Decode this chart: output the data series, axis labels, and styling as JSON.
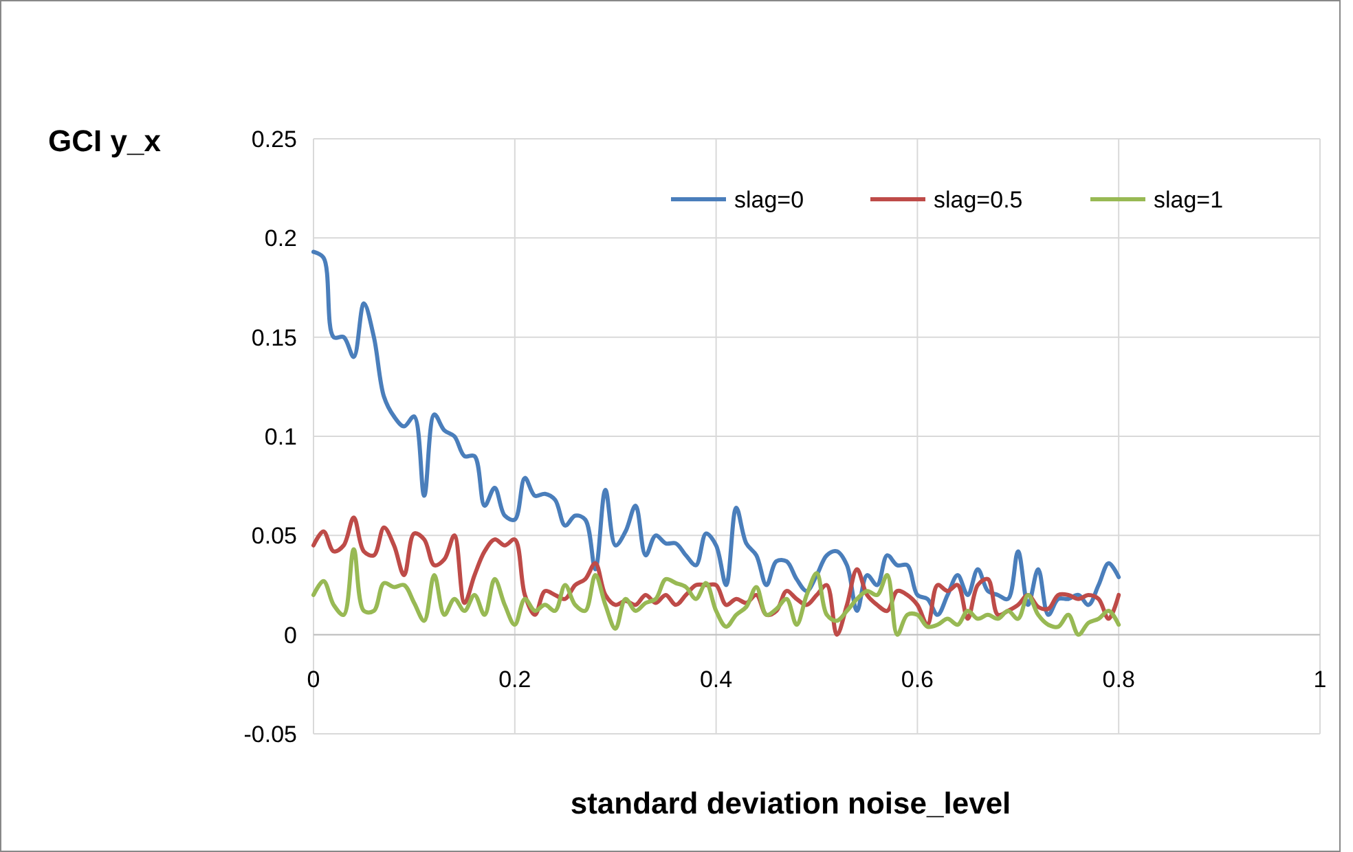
{
  "chart_data": {
    "type": "line",
    "xlabel": "standard deviation noise_level",
    "ylabel": "GCI y_x",
    "x": [
      0,
      0.01,
      0.02,
      0.03,
      0.04,
      0.05,
      0.06,
      0.07,
      0.08,
      0.09,
      0.1,
      0.11,
      0.12,
      0.13,
      0.14,
      0.15,
      0.16,
      0.17,
      0.18,
      0.19,
      0.2,
      0.21,
      0.22,
      0.23,
      0.24,
      0.25,
      0.26,
      0.27,
      0.28,
      0.29,
      0.3,
      0.31,
      0.32,
      0.33,
      0.34,
      0.35,
      0.36,
      0.37,
      0.38,
      0.39,
      0.4,
      0.41,
      0.42,
      0.43,
      0.44,
      0.45,
      0.46,
      0.47,
      0.48,
      0.49,
      0.5,
      0.51,
      0.52,
      0.53,
      0.54,
      0.55,
      0.56,
      0.57,
      0.58,
      0.59,
      0.6,
      0.61,
      0.62,
      0.63,
      0.64,
      0.65,
      0.66,
      0.67,
      0.68,
      0.69,
      0.7,
      0.71,
      0.72,
      0.73,
      0.74,
      0.75,
      0.76,
      0.77,
      0.78,
      0.79,
      0.8
    ],
    "series": [
      {
        "name": "slag=0",
        "color": "#4a7ebb",
        "values": [
          0.193,
          0.19,
          0.15,
          0.15,
          0.14,
          0.167,
          0.15,
          0.12,
          0.11,
          0.105,
          0.11,
          0.07,
          0.111,
          0.103,
          0.1,
          0.09,
          0.09,
          0.065,
          0.074,
          0.06,
          0.058,
          0.079,
          0.07,
          0.071,
          0.068,
          0.055,
          0.06,
          0.058,
          0.033,
          0.073,
          0.045,
          0.052,
          0.065,
          0.04,
          0.05,
          0.046,
          0.046,
          0.04,
          0.035,
          0.051,
          0.045,
          0.025,
          0.064,
          0.046,
          0.04,
          0.025,
          0.037,
          0.037,
          0.028,
          0.022,
          0.03,
          0.04,
          0.042,
          0.035,
          0.012,
          0.03,
          0.025,
          0.04,
          0.035,
          0.035,
          0.02,
          0.018,
          0.01,
          0.02,
          0.03,
          0.02,
          0.033,
          0.022,
          0.02,
          0.018,
          0.042,
          0.015,
          0.033,
          0.01,
          0.018,
          0.018,
          0.02,
          0.015,
          0.025,
          0.036,
          0.029
        ]
      },
      {
        "name": "slag=0.5",
        "color": "#be4b48",
        "values": [
          0.045,
          0.052,
          0.042,
          0.045,
          0.059,
          0.042,
          0.04,
          0.054,
          0.045,
          0.03,
          0.051,
          0.048,
          0.035,
          0.038,
          0.05,
          0.016,
          0.03,
          0.042,
          0.048,
          0.045,
          0.048,
          0.02,
          0.01,
          0.022,
          0.02,
          0.018,
          0.025,
          0.028,
          0.036,
          0.02,
          0.015,
          0.017,
          0.015,
          0.02,
          0.016,
          0.02,
          0.015,
          0.02,
          0.025,
          0.025,
          0.025,
          0.015,
          0.018,
          0.016,
          0.02,
          0.01,
          0.012,
          0.022,
          0.018,
          0.015,
          0.02,
          0.025,
          0.0,
          0.015,
          0.033,
          0.02,
          0.015,
          0.012,
          0.022,
          0.02,
          0.015,
          0.005,
          0.025,
          0.022,
          0.025,
          0.008,
          0.025,
          0.028,
          0.01,
          0.012,
          0.015,
          0.02,
          0.014,
          0.013,
          0.02,
          0.02,
          0.018,
          0.02,
          0.018,
          0.008,
          0.02
        ]
      },
      {
        "name": "slag=1",
        "color": "#98b954",
        "values": [
          0.02,
          0.027,
          0.015,
          0.01,
          0.043,
          0.012,
          0.012,
          0.026,
          0.024,
          0.025,
          0.016,
          0.007,
          0.03,
          0.01,
          0.018,
          0.012,
          0.02,
          0.01,
          0.028,
          0.015,
          0.005,
          0.018,
          0.012,
          0.015,
          0.012,
          0.025,
          0.015,
          0.012,
          0.03,
          0.015,
          0.003,
          0.018,
          0.012,
          0.016,
          0.018,
          0.028,
          0.026,
          0.024,
          0.018,
          0.026,
          0.012,
          0.004,
          0.01,
          0.014,
          0.024,
          0.01,
          0.013,
          0.018,
          0.005,
          0.02,
          0.031,
          0.01,
          0.007,
          0.012,
          0.018,
          0.022,
          0.02,
          0.03,
          0.0,
          0.01,
          0.01,
          0.004,
          0.005,
          0.008,
          0.005,
          0.012,
          0.008,
          0.01,
          0.008,
          0.012,
          0.008,
          0.02,
          0.01,
          0.005,
          0.004,
          0.01,
          0.0,
          0.006,
          0.008,
          0.012,
          0.005
        ]
      }
    ],
    "xlim": [
      0,
      1
    ],
    "xticks": [
      0,
      0.2,
      0.4,
      0.6,
      0.8,
      1
    ],
    "ylim": [
      -0.05,
      0.25
    ],
    "yticks": [
      -0.05,
      0,
      0.05,
      0.1,
      0.15,
      0.2,
      0.25
    ],
    "grid": true,
    "legend": "top right",
    "marker": "none",
    "line_style": "solid"
  }
}
